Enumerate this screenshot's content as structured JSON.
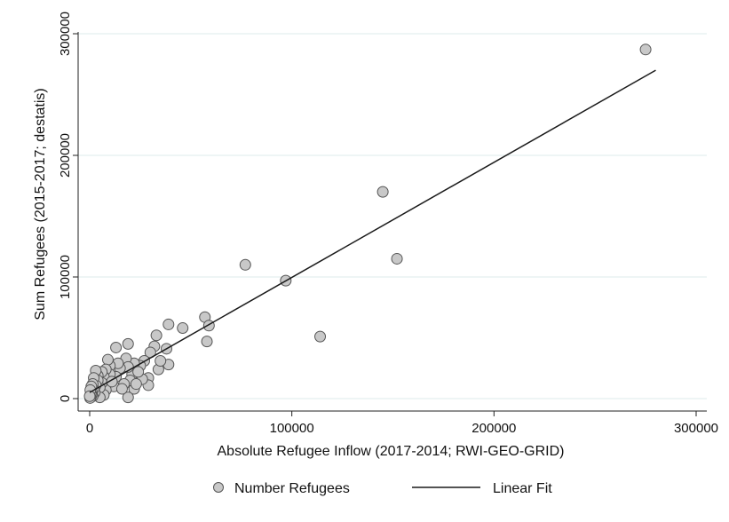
{
  "chart_data": {
    "type": "scatter",
    "xlabel": "Absolute Refugee Inflow (2017-2014; RWI-GEO-GRID)",
    "ylabel": "Sum Refugees (2015-2017; destatis)",
    "xlim": [
      0,
      300000
    ],
    "ylim": [
      0,
      300000
    ],
    "x_ticks": [
      0,
      100000,
      200000,
      300000
    ],
    "y_ticks": [
      0,
      100000,
      200000,
      300000
    ],
    "x_tick_labels": [
      "0",
      "100000",
      "200000",
      "300000"
    ],
    "y_tick_labels": [
      "0",
      "100000",
      "200000",
      "300000"
    ],
    "grid": "horizontal",
    "legend_position": "bottom",
    "colors": {
      "marker_fill": "#c8c8c8",
      "marker_edge": "#555555",
      "fit_line": "#1a1a1a",
      "grid": "#dcebeb"
    },
    "series": [
      {
        "name": "Number Refugees",
        "kind": "scatter",
        "points": [
          [
            275000,
            287000
          ],
          [
            145000,
            170000
          ],
          [
            152000,
            115000
          ],
          [
            77000,
            110000
          ],
          [
            97000,
            97000
          ],
          [
            114000,
            51000
          ],
          [
            57000,
            67000
          ],
          [
            59000,
            60000
          ],
          [
            58000,
            47000
          ],
          [
            46000,
            58000
          ],
          [
            39000,
            61000
          ],
          [
            38000,
            41000
          ],
          [
            39000,
            28000
          ],
          [
            33000,
            52000
          ],
          [
            32000,
            43000
          ],
          [
            34000,
            24000
          ],
          [
            30000,
            38000
          ],
          [
            29000,
            17000
          ],
          [
            29000,
            11000
          ],
          [
            27000,
            31000
          ],
          [
            25000,
            27000
          ],
          [
            26000,
            16000
          ],
          [
            22000,
            29000
          ],
          [
            21000,
            20000
          ],
          [
            22000,
            8000
          ],
          [
            19000,
            45000
          ],
          [
            13000,
            42000
          ],
          [
            18000,
            33000
          ],
          [
            19000,
            26000
          ],
          [
            20000,
            15000
          ],
          [
            19000,
            1000
          ],
          [
            17000,
            12000
          ],
          [
            15000,
            25000
          ],
          [
            14000,
            29000
          ],
          [
            13000,
            18000
          ],
          [
            12000,
            10000
          ],
          [
            10000,
            27000
          ],
          [
            10000,
            20000
          ],
          [
            9000,
            32000
          ],
          [
            9000,
            13000
          ],
          [
            8000,
            24000
          ],
          [
            8000,
            7000
          ],
          [
            7000,
            18000
          ],
          [
            7000,
            3000
          ],
          [
            6000,
            13000
          ],
          [
            6000,
            22000
          ],
          [
            5000,
            9000
          ],
          [
            5000,
            1000
          ],
          [
            4000,
            19000
          ],
          [
            4000,
            15000
          ],
          [
            3000,
            23000
          ],
          [
            3000,
            11000
          ],
          [
            2500,
            5000
          ],
          [
            2000,
            17000
          ],
          [
            2000,
            8000
          ],
          [
            1500,
            12000
          ],
          [
            1500,
            2000
          ],
          [
            1000,
            6000
          ],
          [
            1000,
            3000
          ],
          [
            800,
            10000
          ],
          [
            500,
            1000
          ],
          [
            500,
            4000
          ],
          [
            300,
            7000
          ],
          [
            200,
            500
          ],
          [
            0,
            2000
          ],
          [
            11000,
            14000
          ],
          [
            16000,
            8000
          ],
          [
            23000,
            12000
          ],
          [
            24000,
            22000
          ],
          [
            35000,
            31000
          ]
        ]
      },
      {
        "name": "Linear Fit",
        "kind": "line",
        "points": [
          [
            0,
            5000
          ],
          [
            280000,
            270000
          ]
        ]
      }
    ]
  }
}
